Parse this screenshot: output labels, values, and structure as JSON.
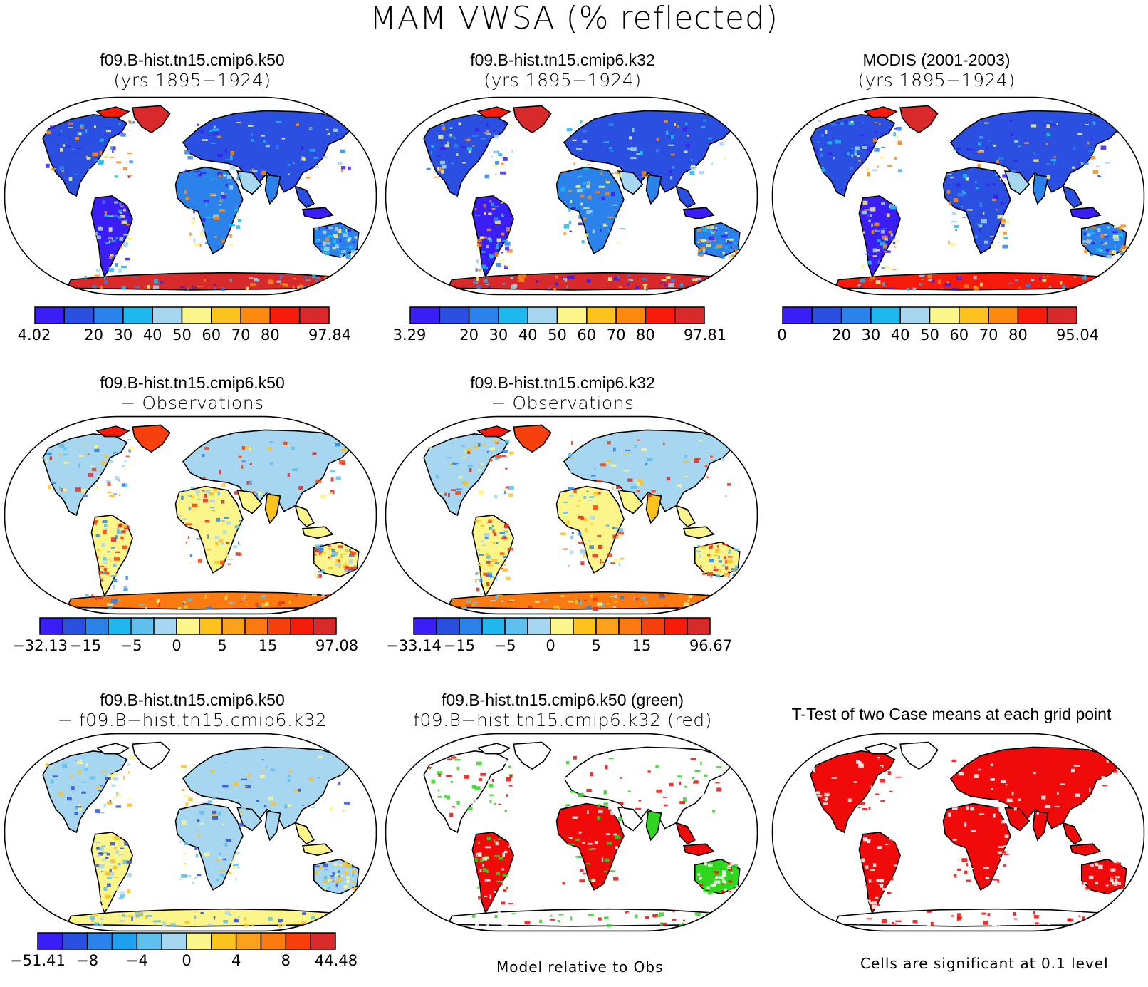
{
  "figure": {
    "title": "MAM VWSA (% reflected)"
  },
  "palettes": {
    "seq": [
      "#3b1ef5",
      "#2b4fe0",
      "#2a82ea",
      "#1eb8ef",
      "#a6d6f0",
      "#fcf589",
      "#fcc21e",
      "#fc8a10",
      "#f71b0c",
      "#d82a2a"
    ],
    "bias": [
      "#3b1ef5",
      "#2b4fe0",
      "#2a82ea",
      "#1eb8ef",
      "#5ec0ee",
      "#a6d6f0",
      "#fcf589",
      "#fcc21e",
      "#fca21a",
      "#fc7a10",
      "#f7400c",
      "#f71b0c",
      "#d82a2a"
    ],
    "cmp": [
      "#3b1ef5",
      "#2b4fe0",
      "#2a82ea",
      "#1e9fef",
      "#5ec0ee",
      "#a6d6f0",
      "#fcf589",
      "#fcc21e",
      "#fca21a",
      "#fc7a10",
      "#f7400c",
      "#d82a2a"
    ]
  },
  "panels": [
    {
      "id": "p1",
      "title": "f09.B-hist.tn15.cmip6.k50",
      "subtitle": "(yrs 1895−1924)",
      "cbar": {
        "labels": [
          "4.02",
          "20",
          "30",
          "40",
          "50",
          "60",
          "70",
          "80",
          "97.84"
        ],
        "palette": "seq"
      }
    },
    {
      "id": "p2",
      "title": "f09.B-hist.tn15.cmip6.k32",
      "subtitle": "(yrs 1895−1924)",
      "cbar": {
        "labels": [
          "3.29",
          "20",
          "30",
          "40",
          "50",
          "60",
          "70",
          "80",
          "97.81"
        ],
        "palette": "seq"
      }
    },
    {
      "id": "p3",
      "title": "MODIS (2001-2003)",
      "subtitle": "(yrs 1895−1924)",
      "cbar": {
        "labels": [
          "0",
          "20",
          "30",
          "40",
          "50",
          "60",
          "70",
          "80",
          "95.04"
        ],
        "palette": "seq"
      }
    },
    {
      "id": "p4",
      "title": "f09.B-hist.tn15.cmip6.k50",
      "subtitle": "− Observations",
      "cbar": {
        "labels": [
          "−32.13",
          "−15",
          "−5",
          "0",
          "5",
          "15",
          "97.08"
        ],
        "palette": "bias"
      }
    },
    {
      "id": "p5",
      "title": "f09.B-hist.tn15.cmip6.k32",
      "subtitle": "− Observations",
      "cbar": {
        "labels": [
          "−33.14",
          "−15",
          "−5",
          "0",
          "5",
          "15",
          "96.67"
        ],
        "palette": "bias"
      }
    },
    {
      "id": "p6",
      "title": "f09.B-hist.tn15.cmip6.k50",
      "subtitle": "− f09.B−hist.tn15.cmip6.k32",
      "cbar": {
        "labels": [
          "−51.41",
          "−8",
          "−4",
          "0",
          "4",
          "8",
          "44.48"
        ],
        "palette": "cmp"
      }
    },
    {
      "id": "p7",
      "title": "f09.B-hist.tn15.cmip6.k50 (green)",
      "subtitle": "f09.B−hist.tn15.cmip6.k32 (red)",
      "note": "Model relative to Obs"
    },
    {
      "id": "p8",
      "title": "T-Test of two Case means at each grid point",
      "note": "Cells are significant at 0.1 level"
    }
  ]
}
